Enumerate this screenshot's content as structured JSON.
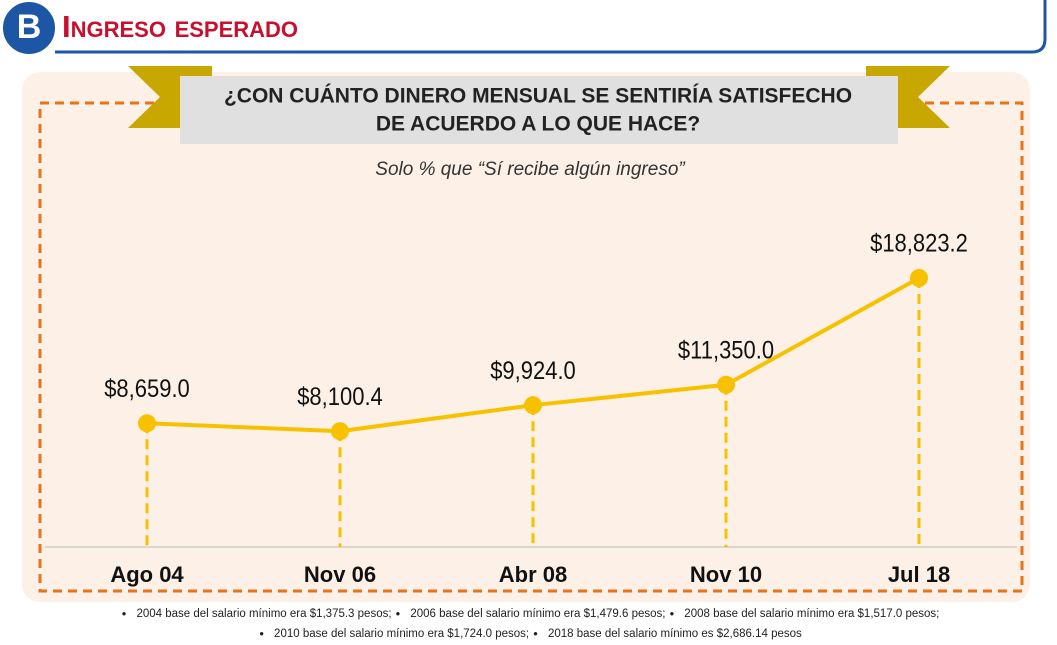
{
  "header": {
    "letter": "B",
    "title": "Ingreso esperado"
  },
  "chart_data": {
    "type": "line",
    "title": [
      "¿CON CUÁNTO DINERO MENSUAL SE SENTIRÍA SATISFECHO",
      "DE ACUERDO A LO QUE HACE?"
    ],
    "subtitle": "Solo % que “Sí recibe algún ingreso”",
    "categories": [
      "Ago 04",
      "Nov 06",
      "Abr 08",
      "Nov 10",
      "Jul 18"
    ],
    "values": [
      8659.0,
      8100.4,
      9924.0,
      11350.0,
      18823.2
    ],
    "value_labels": [
      "$8,659.0",
      "$8,100.4",
      "$9,924.0",
      "$11,350.0",
      "$18,823.2"
    ],
    "color": "#f7c100"
  },
  "notes": [
    "2004 base del salario mínimo era $1,375.3 pesos;",
    "2006 base del salario mínimo era $1,479.6 pesos;",
    "2008 base del salario mínimo era $1,517.0 pesos;",
    "2010 base del salario mínimo era $1,724.0 pesos;",
    "2018 base del salario mínimo es $2,686.14 pesos"
  ]
}
